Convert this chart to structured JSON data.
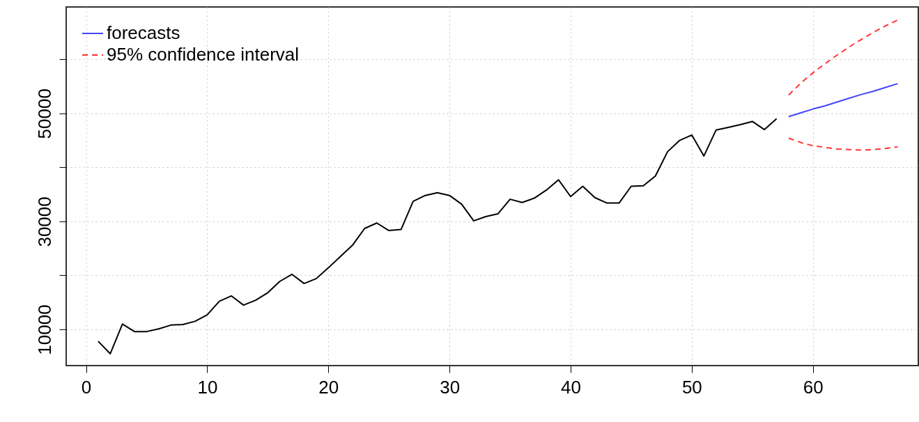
{
  "chart_data": {
    "type": "line",
    "xlim": [
      -1.64,
      68.7
    ],
    "ylim": [
      3300,
      69700
    ],
    "xticks": [
      0,
      10,
      20,
      30,
      40,
      50,
      60
    ],
    "yticks": [
      10000,
      {
        "value": 20000,
        "label": null
      },
      30000,
      {
        "value": 40000,
        "label": null
      },
      50000,
      {
        "value": 60000,
        "label": null
      }
    ],
    "grid": true,
    "legend": "top left",
    "series": [
      {
        "color": "#000000",
        "x": [
          1,
          2,
          3,
          4,
          5,
          6,
          7,
          8,
          9,
          10,
          11,
          12,
          13,
          14,
          15,
          16,
          17,
          18,
          19,
          20,
          21,
          22,
          23,
          24,
          25,
          26,
          27,
          28,
          29,
          30,
          31,
          32,
          33,
          34,
          35,
          36,
          37,
          38,
          39,
          40,
          41,
          42,
          43,
          44,
          45,
          46,
          47,
          48,
          49,
          50,
          51,
          52,
          53,
          54,
          55,
          56,
          57
        ],
        "values": [
          7800,
          5500,
          11000,
          9600,
          9600,
          10100,
          10800,
          10900,
          11500,
          12700,
          15200,
          16200,
          14500,
          15400,
          16800,
          18900,
          20200,
          18500,
          19400,
          21400,
          23500,
          25600,
          28700,
          29700,
          28300,
          28500,
          33700,
          34800,
          35300,
          34800,
          33200,
          30100,
          30900,
          31400,
          34100,
          33500,
          34300,
          35800,
          37700,
          34600,
          36500,
          34400,
          33400,
          33400,
          36500,
          36600,
          38400,
          42900,
          45000,
          46000,
          42100,
          46900,
          47400,
          47900,
          48500,
          47000,
          49000
        ]
      },
      {
        "name": "forecasts",
        "color": "#4444ff",
        "line_style": "solid",
        "x": [
          58,
          59,
          60,
          61,
          62,
          63,
          64,
          65,
          66,
          67
        ],
        "values": [
          49400,
          50100,
          50800,
          51400,
          52100,
          52800,
          53500,
          54100,
          54800,
          55500
        ]
      },
      {
        "name": "95% confidence interval",
        "color": "#ff3333",
        "line_style": "dashed",
        "x": [
          58,
          59,
          60,
          61,
          62,
          63,
          64,
          65,
          66,
          67
        ],
        "values": [
          53400,
          55600,
          57500,
          59200,
          60800,
          62300,
          63700,
          65000,
          66200,
          67300
        ]
      },
      {
        "color": "#ff3333",
        "line_style": "dashed",
        "x": [
          58,
          59,
          60,
          61,
          62,
          63,
          64,
          65,
          66,
          67
        ],
        "values": [
          45400,
          44600,
          44000,
          43700,
          43400,
          43300,
          43200,
          43300,
          43500,
          43800
        ]
      }
    ]
  }
}
